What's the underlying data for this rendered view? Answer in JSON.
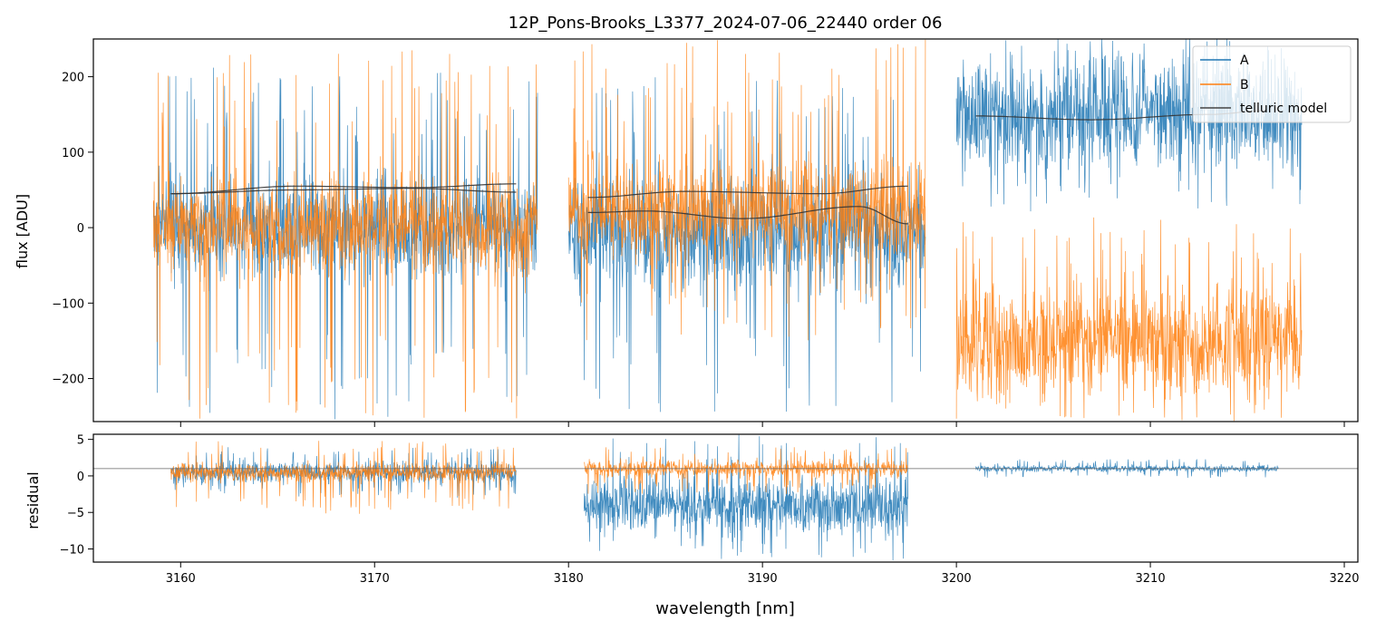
{
  "chart_data": {
    "type": "line",
    "title": "12P_Pons-Brooks_L3377_2024-07-06_22440  order 06",
    "xlabel": "wavelength [nm]",
    "xlim": [
      3155.5,
      3220.7
    ],
    "xticks": [
      3160,
      3170,
      3180,
      3190,
      3200,
      3210,
      3220
    ],
    "legend": {
      "position": "top-right",
      "entries": [
        {
          "label": "A",
          "color": "#1f77b4"
        },
        {
          "label": "B",
          "color": "#ff7f0e"
        },
        {
          "label": "telluric model",
          "color": "#444444"
        }
      ]
    },
    "panels": [
      {
        "name": "flux",
        "ylabel": "flux [ADU]",
        "ylim": [
          -257,
          250
        ],
        "yticks": [
          -200,
          -100,
          0,
          100,
          200
        ],
        "ytick_labels": [
          "−200",
          "−100",
          "0",
          "100",
          "200"
        ],
        "series": [
          {
            "name": "A",
            "color": "#1f77b4",
            "segments": [
              {
                "x": [
                  3158.6,
                  3178.4
                ],
                "level": 0,
                "noise": 60,
                "spike_max": 215,
                "spike_min": -255
              },
              {
                "x": [
                  3180.0,
                  3198.4
                ],
                "level": -10,
                "noise": 70,
                "spike_max": 200,
                "spike_min": -250
              },
              {
                "x": [
                  3200.0,
                  3217.8
                ],
                "level": 150,
                "noise": 70,
                "spike_max": 250,
                "spike_min": 20
              }
            ]
          },
          {
            "name": "B",
            "color": "#ff7f0e",
            "segments": [
              {
                "x": [
                  3158.6,
                  3178.4
                ],
                "level": 0,
                "noise": 55,
                "spike_max": 240,
                "spike_min": -255
              },
              {
                "x": [
                  3180.0,
                  3198.4
                ],
                "level": 25,
                "noise": 60,
                "spike_max": 250,
                "spike_min": -150
              },
              {
                "x": [
                  3200.0,
                  3217.8
                ],
                "level": -150,
                "noise": 65,
                "spike_max": 15,
                "spike_min": -257
              }
            ]
          },
          {
            "name": "telluric model",
            "color": "#333333",
            "curves": [
              {
                "x": [
                  3159.5,
                  3166,
                  3172,
                  3177.3
                ],
                "y": [
                  45,
                  55,
                  53,
                  58
                ]
              },
              {
                "x": [
                  3159.5,
                  3166,
                  3172,
                  3177.3
                ],
                "y": [
                  45,
                  50,
                  52,
                  47
                ]
              },
              {
                "x": [
                  3181,
                  3186,
                  3193,
                  3197.5
                ],
                "y": [
                  40,
                  48,
                  45,
                  55
                ]
              },
              {
                "x": [
                  3181,
                  3184,
                  3189,
                  3195,
                  3197.5
                ],
                "y": [
                  20,
                  22,
                  12,
                  28,
                  5
                ]
              },
              {
                "x": [
                  3201,
                  3207,
                  3213,
                  3216
                ],
                "y": [
                  148,
                  143,
                  150,
                  155
                ]
              }
            ]
          }
        ]
      },
      {
        "name": "residual",
        "ylabel": "residual",
        "ylim": [
          -11.8,
          5.7
        ],
        "yticks": [
          -10,
          -5,
          0,
          5
        ],
        "ytick_labels": [
          "−10",
          "−5",
          "0",
          "5"
        ],
        "reference_line": 1,
        "series": [
          {
            "name": "A",
            "color": "#1f77b4",
            "segments": [
              {
                "x": [
                  3159.5,
                  3177.3
                ],
                "level": 0.5,
                "noise": 1.3,
                "spike_max": 4,
                "spike_min": -3
              },
              {
                "x": [
                  3180.8,
                  3197.5
                ],
                "level": -4,
                "noise": 3.5,
                "spike_max": 5.7,
                "spike_min": -11.8
              },
              {
                "x": [
                  3201.0,
                  3216.6
                ],
                "level": 1,
                "noise": 0.4,
                "spike_max": 2.3,
                "spike_min": -0.3
              }
            ]
          },
          {
            "name": "B",
            "color": "#ff7f0e",
            "segments": [
              {
                "x": [
                  3159.5,
                  3177.3
                ],
                "level": 0.5,
                "noise": 1.1,
                "spike_max": 4.8,
                "spike_min": -5.2
              },
              {
                "x": [
                  3180.8,
                  3197.5
                ],
                "level": 1,
                "noise": 1.0,
                "spike_max": 4,
                "spike_min": -2.5
              }
            ]
          }
        ]
      }
    ]
  }
}
